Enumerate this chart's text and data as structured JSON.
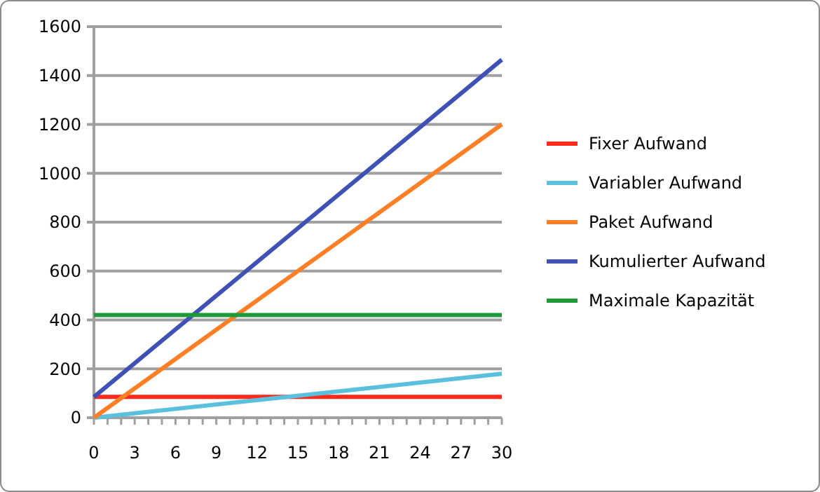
{
  "chart_data": {
    "type": "line",
    "x": [
      0,
      30
    ],
    "xlim": [
      0,
      30
    ],
    "xticks": [
      0,
      3,
      6,
      9,
      12,
      15,
      18,
      21,
      24,
      27,
      30
    ],
    "ylim": [
      0,
      1600
    ],
    "yticks": [
      0,
      200,
      400,
      600,
      800,
      1000,
      1200,
      1400,
      1600
    ],
    "grid": "y",
    "legend": "right",
    "marker": "none",
    "line_style": "solid",
    "series": [
      {
        "name": "Fixer Aufwand",
        "color": "#ff2a1a",
        "values": [
          85,
          85
        ]
      },
      {
        "name": "Variabler Aufwand",
        "color": "#5bc0de",
        "values": [
          0,
          180
        ]
      },
      {
        "name": "Paket Aufwand",
        "color": "#ff7f27",
        "values": [
          0,
          1200
        ]
      },
      {
        "name": "Kumulierter Aufwand",
        "color": "#3f51b5",
        "values": [
          85,
          1465
        ]
      },
      {
        "name": "Maximale Kapazität",
        "color": "#1f9a3a",
        "values": [
          420,
          420
        ]
      }
    ]
  }
}
